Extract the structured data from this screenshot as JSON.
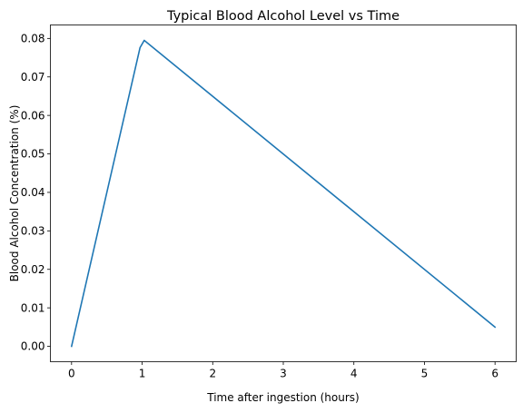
{
  "chart_data": {
    "type": "line",
    "title": "Typical Blood Alcohol Level vs Time",
    "xlabel": "Time after ingestion (hours)",
    "ylabel": "Blood Alcohol Concentration (%)",
    "xlim": [
      -0.3,
      6.3
    ],
    "ylim": [
      -0.004,
      0.0835
    ],
    "x_ticks": [
      0,
      1,
      2,
      3,
      4,
      5,
      6
    ],
    "x_tick_labels": [
      "0",
      "1",
      "2",
      "3",
      "4",
      "5",
      "6"
    ],
    "y_ticks": [
      0.0,
      0.01,
      0.02,
      0.03,
      0.04,
      0.05,
      0.06,
      0.07,
      0.08
    ],
    "y_tick_labels": [
      "0.00",
      "0.01",
      "0.02",
      "0.03",
      "0.04",
      "0.05",
      "0.06",
      "0.07",
      "0.08"
    ],
    "grid": false,
    "series": [
      {
        "color": "#1f77b4",
        "x": [
          0,
          0.97,
          1.03,
          6.0
        ],
        "y": [
          0.0,
          0.0776,
          0.0795,
          0.005
        ]
      }
    ]
  }
}
